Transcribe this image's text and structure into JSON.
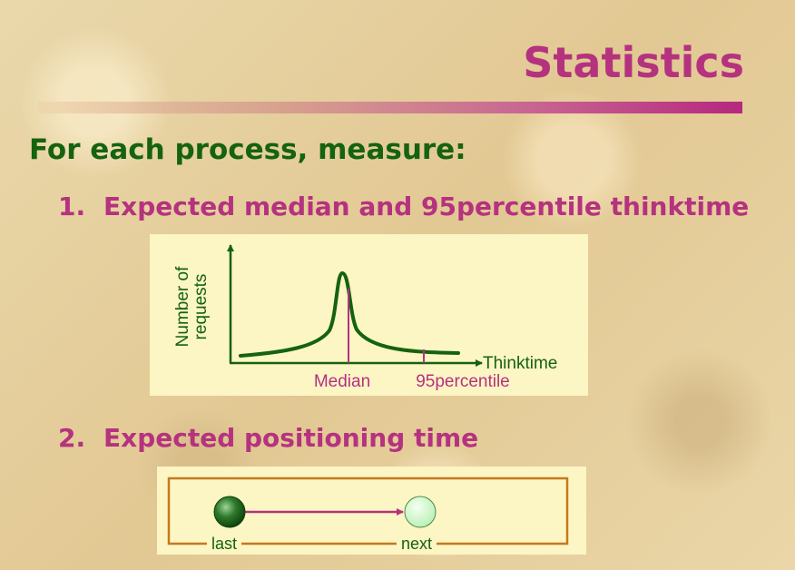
{
  "slide": {
    "title": "Statistics",
    "heading": "For each process, measure:",
    "items": [
      {
        "number": "1.",
        "text": "Expected median and 95percentile thinktime"
      },
      {
        "number": "2.",
        "text": "Expected positioning time"
      }
    ]
  },
  "thinktime_diagram": {
    "y_axis_label_line1": "Number of",
    "y_axis_label_line2": "requests",
    "x_axis_label": "Thinktime",
    "median_label": "Median",
    "percentile_label": "95percentile"
  },
  "positioning_diagram": {
    "start_label": "last",
    "end_label": "next"
  },
  "colors": {
    "title": "#b5327f",
    "heading": "#15620f",
    "item": "#b5327f",
    "curve": "#15620f",
    "marker": "#b5327f",
    "panel": "#fcf5c4",
    "frame": "#c47a1e"
  }
}
